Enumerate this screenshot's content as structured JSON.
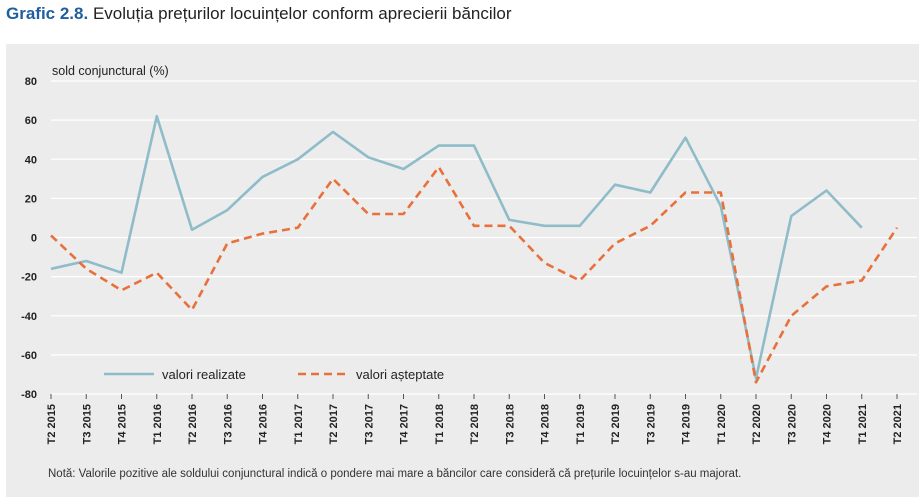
{
  "header": {
    "number": "Grafic 2.8.",
    "title": "Evoluția prețurilor locuințelor conform aprecierii băncilor"
  },
  "note": "Notă: Valorile pozitive ale soldului conjunctural indică o pondere mai mare a băncilor care consideră că prețurile locuințelor s-au majorat.",
  "colors": {
    "realized": "#8fbcc9",
    "expected": "#e8703a",
    "panel": "#ececec",
    "grid": "#ffffff",
    "title_accent": "#1f5f9e"
  },
  "chart_data": {
    "type": "line",
    "ylabel": "sold conjunctural (%)",
    "ylim": [
      -80,
      80
    ],
    "yticks": [
      80,
      60,
      40,
      20,
      0,
      -20,
      -40,
      -60,
      -80
    ],
    "grid": true,
    "legend_position": "bottom-left",
    "categories": [
      "T2 2015",
      "T3 2015",
      "T4 2015",
      "T1 2016",
      "T2 2016",
      "T3 2016",
      "T4 2016",
      "T1 2017",
      "T2 2017",
      "T3 2017",
      "T4 2017",
      "T1 2018",
      "T2 2018",
      "T3 2018",
      "T4 2018",
      "T1 2019",
      "T2 2019",
      "T3 2019",
      "T4 2019",
      "T1 2020",
      "T2 2020",
      "T3 2020",
      "T4 2020",
      "T1 2021",
      "T2 2021"
    ],
    "series": [
      {
        "name": "valori realizate",
        "style": "solid",
        "values": [
          -16,
          -12,
          -18,
          62,
          4,
          14,
          31,
          40,
          54,
          41,
          35,
          47,
          47,
          9,
          6,
          6,
          27,
          23,
          51,
          16,
          -72,
          11,
          24,
          5,
          null
        ]
      },
      {
        "name": "valori așteptate",
        "style": "dashed",
        "values": [
          1,
          -16,
          -27,
          -18,
          -37,
          -3,
          2,
          5,
          30,
          12,
          12,
          36,
          6,
          6,
          -13,
          -22,
          -3,
          6,
          23,
          23,
          -74,
          -40,
          -25,
          -22,
          5
        ]
      }
    ]
  }
}
